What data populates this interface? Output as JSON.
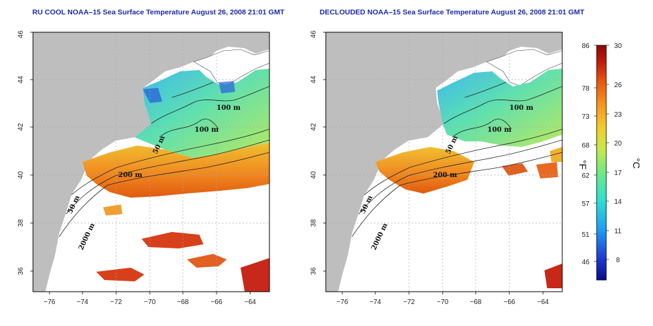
{
  "panels": [
    {
      "title": "RU COOL NOAA–15 Sea Surface Temperature August 26, 2008 21:01 GMT",
      "lon_ticks": [
        "−76",
        "−74",
        "−72",
        "−70",
        "−68",
        "−66",
        "−64"
      ],
      "lat_ticks": [
        "36",
        "38",
        "40",
        "42",
        "44",
        "46"
      ],
      "contour_labels": [
        "100 m",
        "100 m",
        "50 m",
        "200 m",
        "50 m",
        "2000 m"
      ]
    },
    {
      "title": "DECLOUDED NOAA–15 Sea Surface Temperature August 26, 2008 21:01 GMT",
      "lon_ticks": [
        "−76",
        "−74",
        "−72",
        "−70",
        "−68",
        "−66",
        "−64"
      ],
      "lat_ticks": [
        "36",
        "38",
        "40",
        "42",
        "44",
        "46"
      ],
      "contour_labels": [
        "100 m",
        "100 m",
        "50 m",
        "200 m",
        "50 m",
        "2000 m"
      ]
    }
  ],
  "colorbar": {
    "f_ticks": [
      "86",
      "78",
      "73",
      "68",
      "62",
      "57",
      "51",
      "46"
    ],
    "c_ticks": [
      "30",
      "26",
      "23",
      "20",
      "17",
      "14",
      "11",
      "8"
    ],
    "f_unit": "°F",
    "c_unit": "°C",
    "colors": [
      "#0a0a8c",
      "#1f3fd6",
      "#1fa0f0",
      "#2fe0d0",
      "#6be88a",
      "#c8e84a",
      "#f0d030",
      "#f59a20",
      "#e85a10",
      "#c01a0a",
      "#8a0a0a"
    ]
  },
  "colors": {
    "land": "#bebebe",
    "title": "#1a2aa8",
    "grid": "#b0b0b0"
  }
}
